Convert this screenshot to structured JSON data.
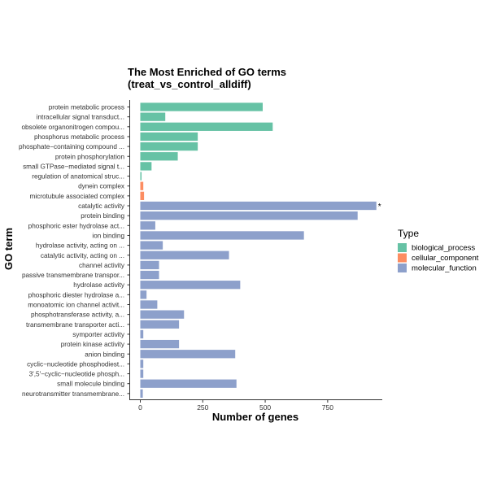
{
  "chart_data": {
    "type": "bar",
    "orientation": "horizontal",
    "title": "The Most Enriched of GO terms",
    "subtitle": "(treat_vs_control_alldiff)",
    "xlabel": "Number of genes",
    "ylabel": "GO term",
    "xlim": [
      0,
      980
    ],
    "xticks": [
      0,
      250,
      500,
      750
    ],
    "grid": false,
    "legend": {
      "title": "Type",
      "position": "right",
      "entries": [
        {
          "name": "biological_process",
          "color": "#66c2a5"
        },
        {
          "name": "cellular_component",
          "color": "#fc8d62"
        },
        {
          "name": "molecular_function",
          "color": "#8da0cb"
        }
      ]
    },
    "categories": [
      "protein metabolic process",
      "intracellular signal transduct...",
      "obsolete organonitrogen compou...",
      "phosphorus metabolic process",
      "phosphate−containing compound ...",
      "protein phosphorylation",
      "small GTPase−mediated signal t...",
      "regulation of anatomical struc...",
      "dynein complex",
      "microtubule associated complex",
      "catalytic activity",
      "protein binding",
      "phosphoric ester hydrolase act...",
      "ion binding",
      "hydrolase activity, acting on ...",
      "catalytic activity, acting on ...",
      "channel activity",
      "passive transmembrane transpor...",
      "hydrolase activity",
      "phosphoric diester hydrolase a...",
      "monoatomic ion channel activit...",
      "phosphotransferase activity, a...",
      "transmembrane transporter acti...",
      "symporter activity",
      "protein kinase activity",
      "anion binding",
      "cyclic−nucleotide phosphodiest...",
      "3',5'−cyclic−nucleotide phosph...",
      "small molecule binding",
      "neurotransmitter transmembrane..."
    ],
    "values": [
      490,
      100,
      530,
      230,
      230,
      150,
      45,
      5,
      12,
      15,
      945,
      870,
      60,
      655,
      90,
      355,
      75,
      75,
      400,
      25,
      68,
      175,
      155,
      12,
      155,
      380,
      12,
      12,
      385,
      10
    ],
    "types": [
      "biological_process",
      "biological_process",
      "biological_process",
      "biological_process",
      "biological_process",
      "biological_process",
      "biological_process",
      "biological_process",
      "cellular_component",
      "cellular_component",
      "molecular_function",
      "molecular_function",
      "molecular_function",
      "molecular_function",
      "molecular_function",
      "molecular_function",
      "molecular_function",
      "molecular_function",
      "molecular_function",
      "molecular_function",
      "molecular_function",
      "molecular_function",
      "molecular_function",
      "molecular_function",
      "molecular_function",
      "molecular_function",
      "molecular_function",
      "molecular_function",
      "molecular_function",
      "molecular_function"
    ],
    "annotations": [
      {
        "category": "catalytic activity",
        "text": "*"
      }
    ]
  }
}
